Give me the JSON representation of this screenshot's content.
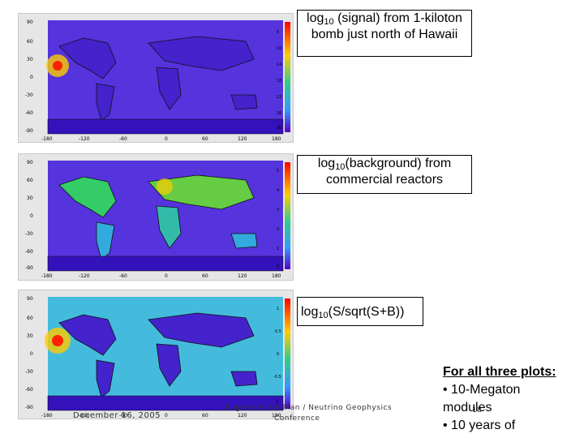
{
  "panels": [
    {
      "caption_prefix": "log",
      "caption_sub": "10",
      "caption_rest": " (signal) from 1-kiloton bomb just north of Hawaii",
      "hotspot": true,
      "ocean": "#5533dd",
      "colorbar_ticks": [
        "6",
        "10",
        "14",
        "18",
        "22",
        "26",
        "30"
      ]
    },
    {
      "caption_prefix": "log",
      "caption_sub": "10",
      "caption_rest": "(background) from commercial reactors",
      "hotspot": false,
      "ocean": "#5533dd",
      "colorbar_ticks": [
        "5",
        "4",
        "3",
        "2",
        "1",
        "0"
      ]
    },
    {
      "caption_prefix": "log",
      "caption_sub": "10",
      "caption_rest": "(S/sqrt(S+B))",
      "hotspot": true,
      "ocean": "#44bbdd",
      "colorbar_ticks": [
        "1",
        "0.5",
        "0",
        "-0.5",
        "-1"
      ]
    }
  ],
  "axis": {
    "lat_ticks": [
      "90",
      "60",
      "30",
      "0",
      "-30",
      "-60",
      "-90"
    ],
    "lon_ticks": [
      "-180",
      "-120",
      "-60",
      "0",
      "60",
      "120",
      "180"
    ]
  },
  "footer": {
    "date": "December 16, 2005",
    "author": "Eugene H. Guillian / Neutrino Geophysics",
    "conference": "Conference",
    "page": "18"
  },
  "notes": {
    "header": "For all three plots:",
    "bullet_1": "• 10-Megaton modules",
    "bullet_2": "• 10 years of"
  }
}
